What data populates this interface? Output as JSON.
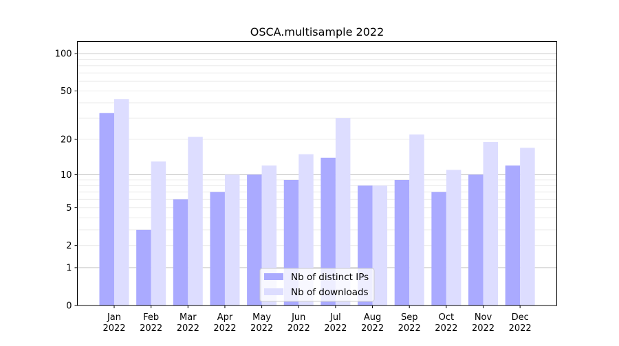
{
  "chart_data": {
    "type": "bar",
    "title": "OSCA.multisample 2022",
    "xlabel": "",
    "ylabel": "",
    "yscale": "log(1+y)",
    "ylim": [
      0,
      120
    ],
    "yticks": [
      0,
      1,
      2,
      5,
      10,
      20,
      50,
      100
    ],
    "grid": true,
    "legend_position": "lower center",
    "categories": [
      "Jan\n2022",
      "Feb\n2022",
      "Mar\n2022",
      "Apr\n2022",
      "May\n2022",
      "Jun\n2022",
      "Jul\n2022",
      "Aug\n2022",
      "Sep\n2022",
      "Oct\n2022",
      "Nov\n2022",
      "Dec\n2022"
    ],
    "series": [
      {
        "name": "Nb of distinct IPs",
        "color": "#aaaaff",
        "values": [
          33,
          3,
          6,
          7,
          10,
          9,
          14,
          8,
          9,
          7,
          10,
          12
        ]
      },
      {
        "name": "Nb of downloads",
        "color": "#ddddff",
        "values": [
          43,
          13,
          21,
          10,
          12,
          15,
          30,
          8,
          22,
          11,
          19,
          17
        ]
      }
    ]
  }
}
